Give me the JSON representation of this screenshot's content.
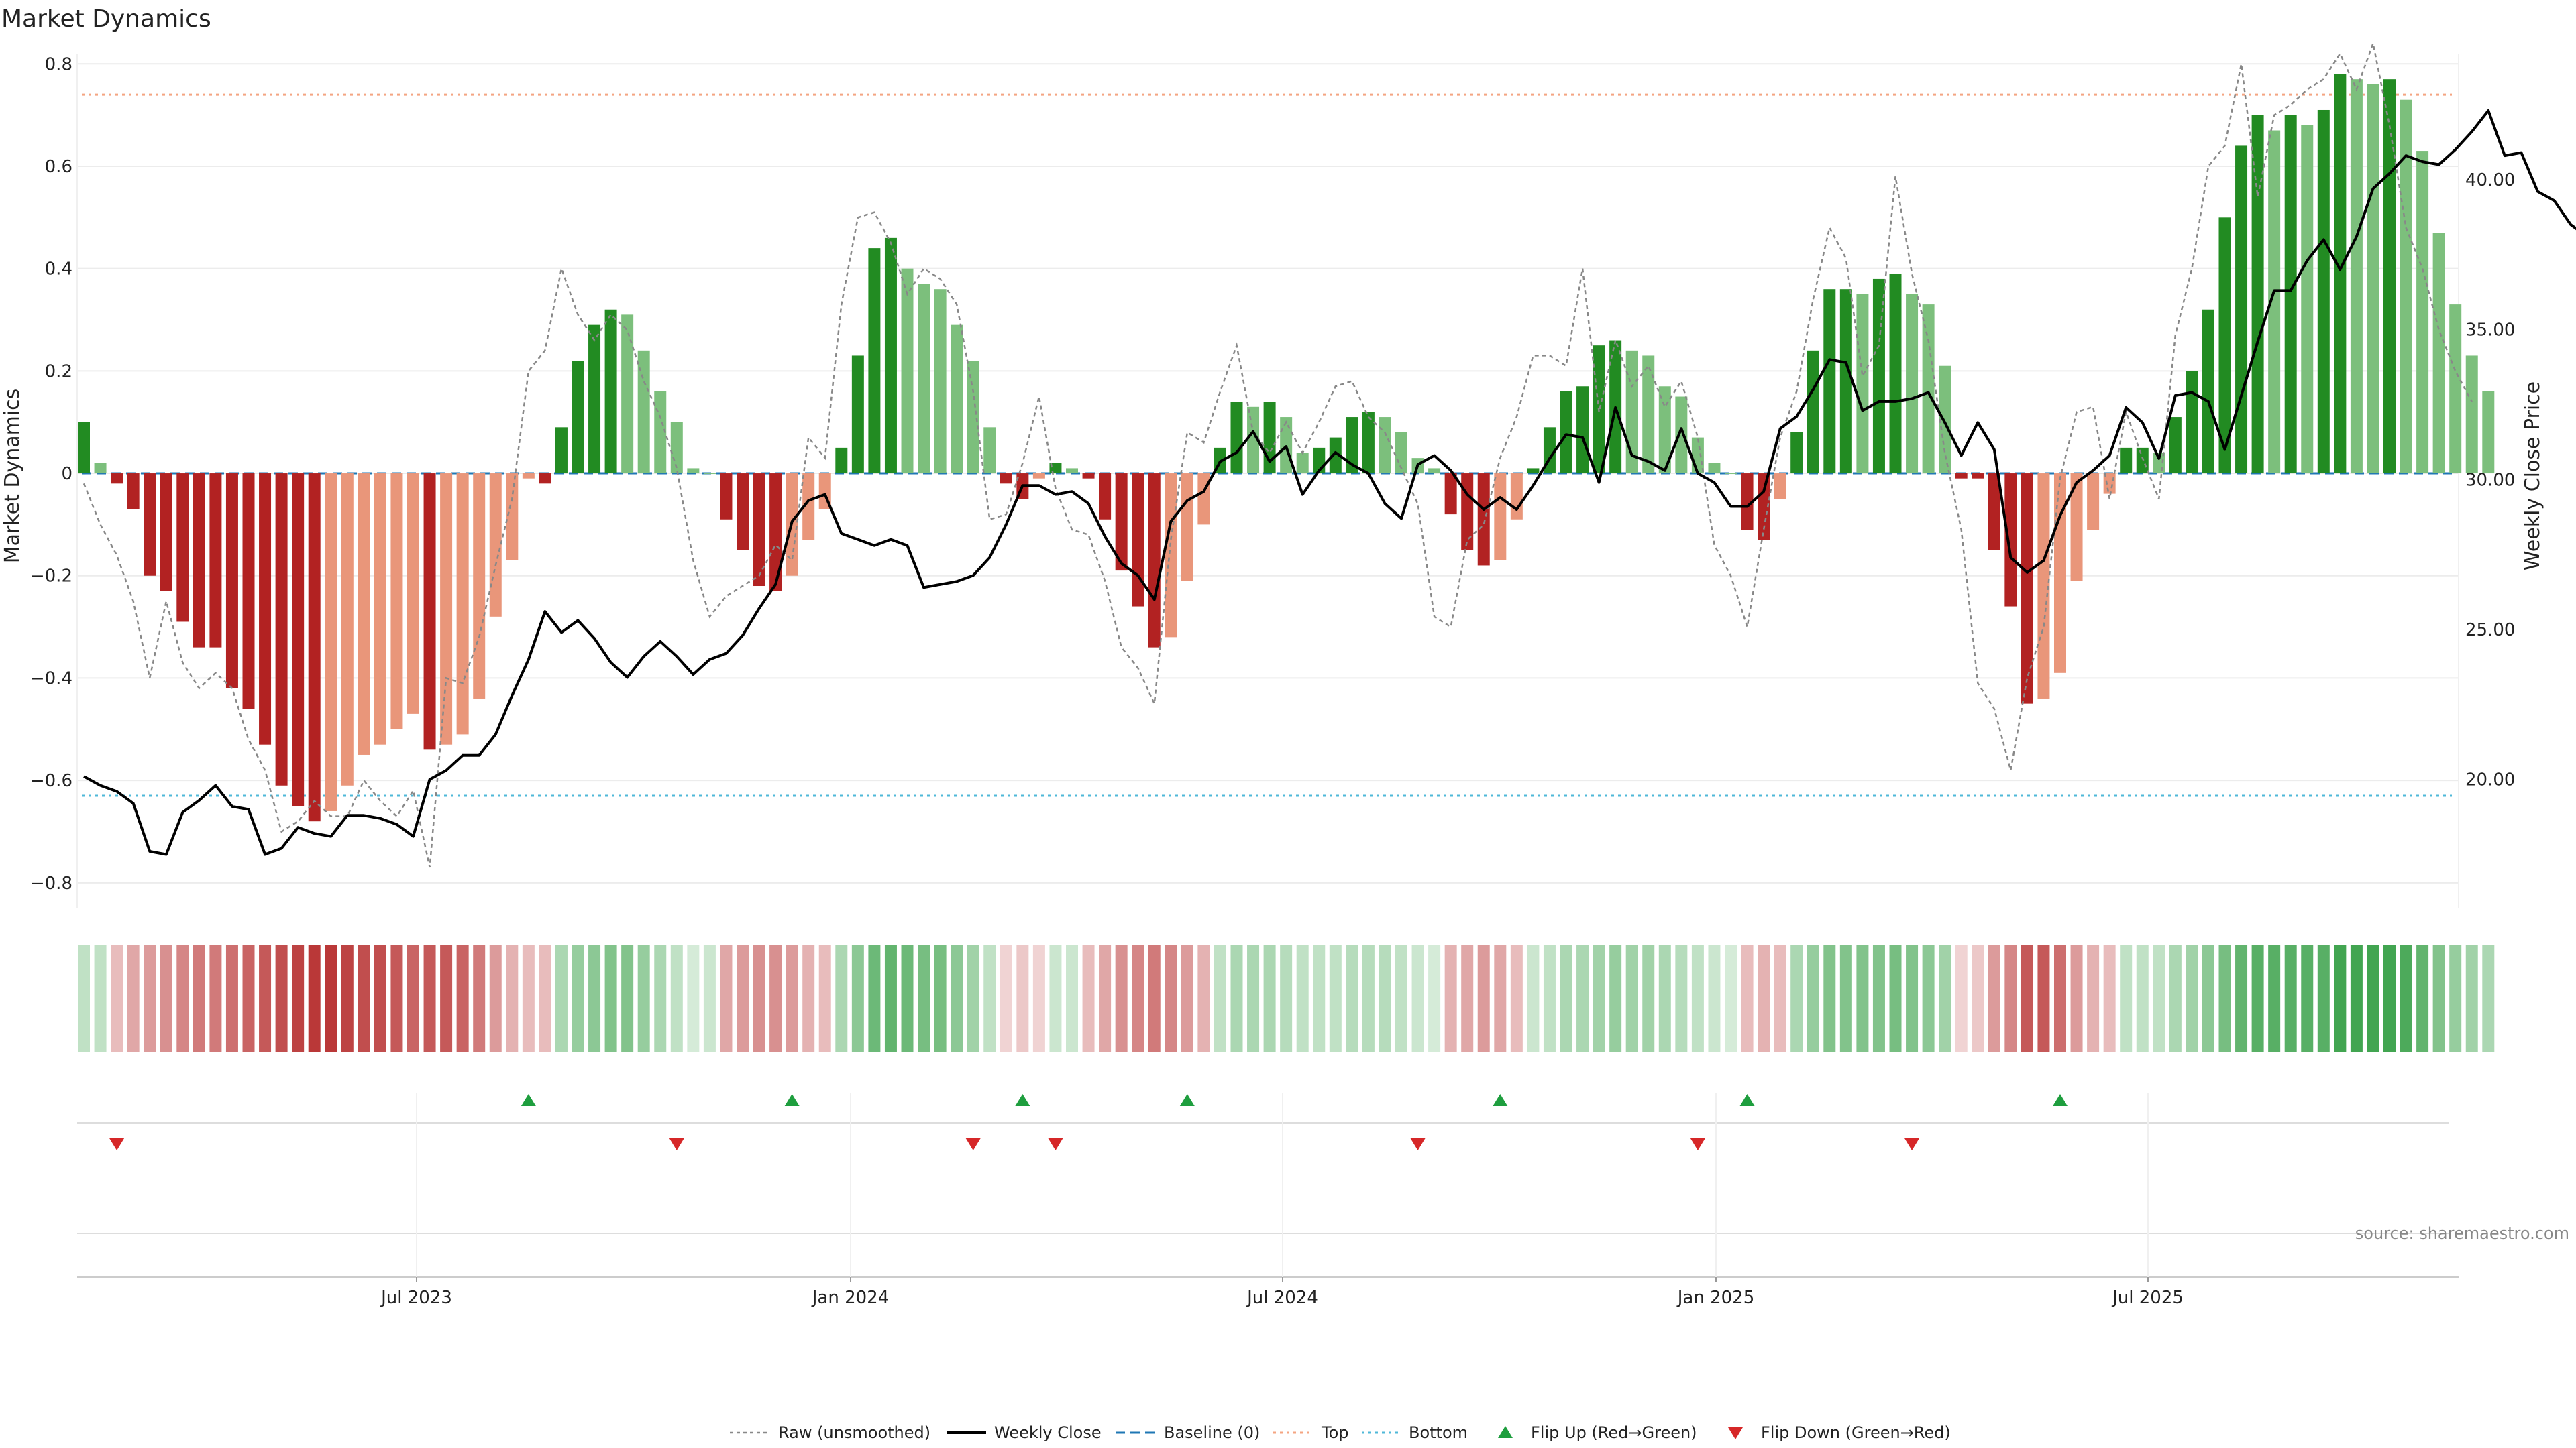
{
  "chart_data": {
    "type": "bar",
    "title": "Market Dynamics",
    "ylabel_left": "Market Dynamics",
    "ylabel_right": "Weekly Close Price",
    "ylim_left": [
      -0.85,
      0.82
    ],
    "yticks_left": [
      "0.8",
      "0.6",
      "0.4",
      "0.2",
      "0",
      "−0.2",
      "−0.4",
      "−0.6",
      "−0.8"
    ],
    "ylim_right": [
      15.7,
      44.2
    ],
    "yticks_right": [
      "40.00",
      "35.00",
      "30.00",
      "25.00",
      "20.00"
    ],
    "x_ticks": [
      "Jul 2023",
      "Jan 2024",
      "Jul 2024",
      "Jan 2025",
      "Jul 2025"
    ],
    "top_level": 0.74,
    "bottom_level": -0.63,
    "dynamics": [
      0.1,
      0.02,
      -0.02,
      -0.07,
      -0.2,
      -0.23,
      -0.29,
      -0.34,
      -0.34,
      -0.42,
      -0.46,
      -0.53,
      -0.61,
      -0.65,
      -0.68,
      -0.66,
      -0.61,
      -0.55,
      -0.53,
      -0.5,
      -0.47,
      -0.54,
      -0.53,
      -0.51,
      -0.44,
      -0.28,
      -0.17,
      -0.01,
      -0.02,
      0.09,
      0.22,
      0.29,
      0.32,
      0.31,
      0.24,
      0.16,
      0.1,
      0.01,
      0.0,
      -0.09,
      -0.15,
      -0.22,
      -0.23,
      -0.2,
      -0.13,
      -0.07,
      0.05,
      0.23,
      0.44,
      0.46,
      0.4,
      0.37,
      0.36,
      0.29,
      0.22,
      0.09,
      -0.02,
      -0.05,
      -0.01,
      0.02,
      0.01,
      -0.01,
      -0.09,
      -0.19,
      -0.26,
      -0.34,
      -0.32,
      -0.21,
      -0.1,
      0.05,
      0.14,
      0.13,
      0.14,
      0.11,
      0.04,
      0.05,
      0.07,
      0.11,
      0.12,
      0.11,
      0.08,
      0.03,
      0.01,
      -0.08,
      -0.15,
      -0.18,
      -0.17,
      -0.09,
      0.01,
      0.09,
      0.16,
      0.17,
      0.25,
      0.26,
      0.24,
      0.23,
      0.17,
      0.15,
      0.07,
      0.02,
      0.0,
      -0.11,
      -0.13,
      -0.05,
      0.08,
      0.24,
      0.36,
      0.36,
      0.35,
      0.38,
      0.39,
      0.35,
      0.33,
      0.21,
      -0.01,
      -0.01,
      -0.15,
      -0.26,
      -0.45,
      -0.44,
      -0.39,
      -0.21,
      -0.11,
      -0.04,
      0.05,
      0.05,
      0.04,
      0.11,
      0.2,
      0.32,
      0.5,
      0.64,
      0.7,
      0.67,
      0.7,
      0.68,
      0.71,
      0.78,
      0.77,
      0.76,
      0.77,
      0.73,
      0.63,
      0.47,
      0.33,
      0.23,
      0.16
    ],
    "raw": [
      -0.02,
      -0.1,
      -0.16,
      -0.25,
      -0.4,
      -0.25,
      -0.37,
      -0.42,
      -0.39,
      -0.42,
      -0.52,
      -0.58,
      -0.7,
      -0.68,
      -0.64,
      -0.67,
      -0.67,
      -0.6,
      -0.64,
      -0.67,
      -0.62,
      -0.77,
      -0.4,
      -0.41,
      -0.32,
      -0.18,
      -0.05,
      0.2,
      0.24,
      0.4,
      0.31,
      0.26,
      0.31,
      0.28,
      0.18,
      0.11,
      0.01,
      -0.17,
      -0.28,
      -0.24,
      -0.22,
      -0.2,
      -0.14,
      -0.17,
      0.07,
      0.03,
      0.33,
      0.5,
      0.51,
      0.45,
      0.35,
      0.4,
      0.38,
      0.33,
      0.16,
      -0.09,
      -0.08,
      0.02,
      0.15,
      -0.03,
      -0.11,
      -0.12,
      -0.21,
      -0.34,
      -0.38,
      -0.45,
      -0.13,
      0.08,
      0.06,
      0.16,
      0.25,
      0.08,
      0.04,
      0.1,
      0.04,
      0.1,
      0.17,
      0.18,
      0.11,
      0.08,
      0.01,
      -0.06,
      -0.28,
      -0.3,
      -0.13,
      -0.1,
      0.03,
      0.11,
      0.23,
      0.23,
      0.21,
      0.4,
      0.12,
      0.26,
      0.17,
      0.21,
      0.13,
      0.18,
      0.07,
      -0.14,
      -0.2,
      -0.3,
      -0.11,
      0.07,
      0.16,
      0.34,
      0.48,
      0.42,
      0.19,
      0.25,
      0.58,
      0.39,
      0.26,
      0.04,
      -0.11,
      -0.41,
      -0.46,
      -0.58,
      -0.4,
      -0.3,
      -0.01,
      0.12,
      0.13,
      -0.05,
      0.12,
      0.03,
      -0.05,
      0.27,
      0.4,
      0.6,
      0.64,
      0.8,
      0.54,
      0.7,
      0.72,
      0.75,
      0.77,
      0.82,
      0.75,
      0.84,
      0.68,
      0.48,
      0.4,
      0.28,
      0.2,
      0.14
    ],
    "weekly_close": [
      20.1,
      19.8,
      19.6,
      19.2,
      17.6,
      17.5,
      18.9,
      19.3,
      19.8,
      19.1,
      19.0,
      17.5,
      17.7,
      18.4,
      18.2,
      18.1,
      18.8,
      18.8,
      18.7,
      18.5,
      18.1,
      20.0,
      20.3,
      20.8,
      20.8,
      21.5,
      22.8,
      24.0,
      25.6,
      24.9,
      25.3,
      24.7,
      23.9,
      23.4,
      24.1,
      24.6,
      24.1,
      23.5,
      24.0,
      24.2,
      24.8,
      25.7,
      26.5,
      28.6,
      29.3,
      29.5,
      28.2,
      28.0,
      27.8,
      28.0,
      27.8,
      26.4,
      26.5,
      26.6,
      26.8,
      27.4,
      28.5,
      29.8,
      29.8,
      29.5,
      29.6,
      29.2,
      28.1,
      27.2,
      26.8,
      26.0,
      28.6,
      29.3,
      29.6,
      30.6,
      30.9,
      31.6,
      30.6,
      31.1,
      29.5,
      30.3,
      30.9,
      30.5,
      30.2,
      29.2,
      28.7,
      30.5,
      30.8,
      30.3,
      29.5,
      29.0,
      29.4,
      29.0,
      29.8,
      30.7,
      31.5,
      31.4,
      29.9,
      32.4,
      30.8,
      30.6,
      30.3,
      31.7,
      30.2,
      29.9,
      29.1,
      29.1,
      29.6,
      31.7,
      32.1,
      33.0,
      34.0,
      33.9,
      32.3,
      32.6,
      32.6,
      32.7,
      32.9,
      31.9,
      30.8,
      31.9,
      31.0,
      27.4,
      26.9,
      27.3,
      28.8,
      29.9,
      30.3,
      30.8,
      32.4,
      31.9,
      30.7,
      32.8,
      32.9,
      32.6,
      31.0,
      32.8,
      34.6,
      36.3,
      36.3,
      37.3,
      38.0,
      37.0,
      38.1,
      39.7,
      40.2,
      40.8,
      40.6,
      40.5,
      41.0,
      41.6,
      42.3,
      40.8,
      40.9,
      39.6,
      39.3,
      38.5,
      38.1,
      38.3,
      38.3
    ],
    "heatmap_intensity": [
      0.3,
      0.3,
      0.3,
      0.4,
      0.45,
      0.5,
      0.55,
      0.6,
      0.6,
      0.65,
      0.7,
      0.75,
      0.8,
      0.85,
      0.9,
      0.9,
      0.85,
      0.8,
      0.8,
      0.75,
      0.7,
      0.75,
      0.75,
      0.7,
      0.6,
      0.45,
      0.35,
      0.3,
      0.3,
      0.4,
      0.5,
      0.55,
      0.6,
      0.6,
      0.5,
      0.4,
      0.3,
      0.2,
      0.25,
      0.4,
      0.45,
      0.5,
      0.5,
      0.45,
      0.35,
      0.3,
      0.4,
      0.55,
      0.7,
      0.75,
      0.7,
      0.65,
      0.65,
      0.55,
      0.45,
      0.3,
      0.2,
      0.25,
      0.2,
      0.25,
      0.25,
      0.3,
      0.4,
      0.5,
      0.55,
      0.6,
      0.55,
      0.45,
      0.35,
      0.3,
      0.4,
      0.4,
      0.4,
      0.35,
      0.3,
      0.3,
      0.3,
      0.35,
      0.35,
      0.35,
      0.3,
      0.25,
      0.2,
      0.35,
      0.4,
      0.45,
      0.4,
      0.3,
      0.25,
      0.3,
      0.4,
      0.4,
      0.45,
      0.5,
      0.45,
      0.45,
      0.4,
      0.35,
      0.3,
      0.25,
      0.2,
      0.3,
      0.35,
      0.3,
      0.4,
      0.5,
      0.6,
      0.6,
      0.6,
      0.6,
      0.65,
      0.6,
      0.55,
      0.45,
      0.2,
      0.25,
      0.45,
      0.55,
      0.75,
      0.75,
      0.65,
      0.45,
      0.35,
      0.3,
      0.3,
      0.3,
      0.3,
      0.4,
      0.45,
      0.55,
      0.65,
      0.75,
      0.8,
      0.8,
      0.8,
      0.8,
      0.8,
      0.9,
      0.9,
      0.9,
      0.9,
      0.85,
      0.75,
      0.6,
      0.5,
      0.45,
      0.4
    ],
    "flip_up_indices": [
      27,
      43,
      57,
      67,
      86,
      101,
      120
    ],
    "flip_down_indices": [
      2,
      36,
      54,
      59,
      81,
      98,
      111
    ],
    "legend": [
      "Raw (unsmoothed)",
      "Weekly Close",
      "Baseline (0)",
      "Top",
      "Bottom",
      "Flip Up (Red→Green)",
      "Flip Down (Green→Red)"
    ],
    "colors": {
      "green_strong": "#228B22",
      "green_light": "#7CBF7C",
      "red_strong": "#B22222",
      "red_light": "#E9967A",
      "raw_line": "#888888",
      "close_line": "#000000",
      "baseline": "#1F77B4",
      "top": "#F4A582",
      "bottom": "#4FB8D8",
      "flip_up": "#1E9E3E",
      "flip_down": "#D62728",
      "heat_green": "#2E9B3E",
      "heat_red": "#B22222"
    }
  },
  "source_label": "source: sharemaestro.com"
}
